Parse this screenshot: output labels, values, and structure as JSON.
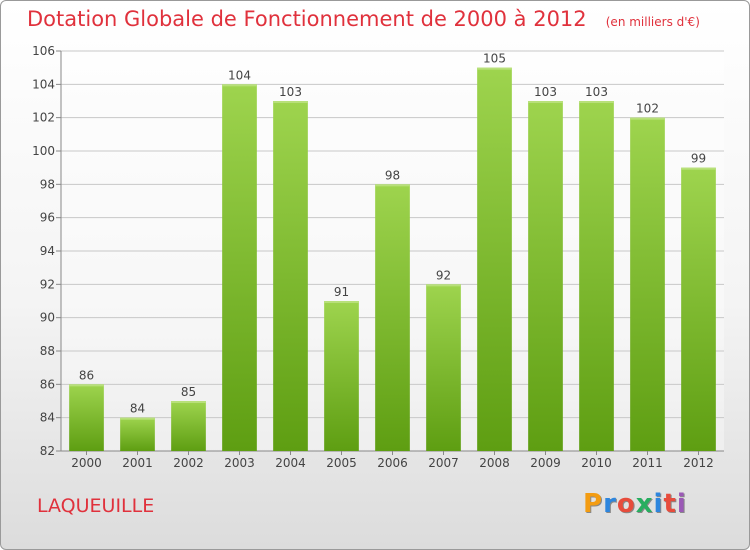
{
  "header": {
    "title": "Dotation Globale de Fonctionnement de 2000 à 2012",
    "unit": "(en milliers d'€)"
  },
  "footer": {
    "commune": "LAQUEUILLE",
    "logo_text": "Proxiti",
    "logo_colors": [
      "#f39c12",
      "#2e86de",
      "#e74c3c",
      "#27ae60",
      "#2e86de",
      "#e74c3c",
      "#9b59b6"
    ]
  },
  "colors": {
    "title": "#e0313c",
    "bar_light": "#9ed44e",
    "bar_dark": "#5e9e12",
    "grid": "#c8c8c8",
    "axis_text": "#444444"
  },
  "chart_data": {
    "type": "bar",
    "title": "Dotation Globale de Fonctionnement de 2000 à 2012",
    "subtitle": "(en milliers d'€)",
    "xlabel": "",
    "ylabel": "",
    "categories": [
      "2000",
      "2001",
      "2002",
      "2003",
      "2004",
      "2005",
      "2006",
      "2007",
      "2008",
      "2009",
      "2010",
      "2011",
      "2012"
    ],
    "values": [
      86,
      84,
      85,
      104,
      103,
      91,
      98,
      92,
      105,
      103,
      103,
      102,
      99
    ],
    "ylim": [
      82,
      106
    ],
    "yticks": [
      82,
      84,
      86,
      88,
      90,
      92,
      94,
      96,
      98,
      100,
      102,
      104,
      106
    ],
    "grid": true,
    "legend": "none"
  }
}
